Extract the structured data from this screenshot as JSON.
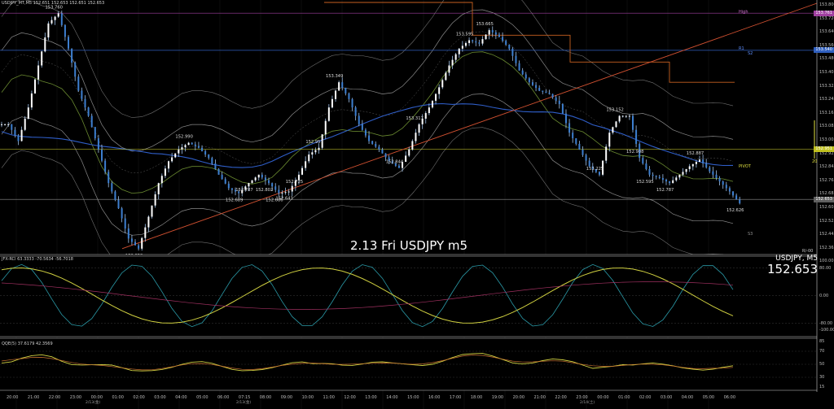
{
  "header": {
    "title": "USDJPY_MT,M5 152.651 152.653 152.651 152.653",
    "indicator1": "JFX-RCI 63.3333 -70.5634 -56.7018",
    "indicator2": "QQE(5) 37.6179 42.3569"
  },
  "panel": {
    "symbol": "USDJPY, M5",
    "price": "152.653",
    "watermark": "2.13 Fri USDJPY m5"
  },
  "level_labels": {
    "high": "High",
    "r1": "R1",
    "s2": "S2",
    "pivot": "PIVOT",
    "s3": "S3",
    "pivot_count": "20",
    "rci_tag": "R/-00"
  },
  "price_axis_ticks": [
    "153.800",
    "153.720",
    "153.640",
    "153.560",
    "153.480",
    "153.405",
    "153.325",
    "153.245",
    "153.165",
    "153.085",
    "153.005",
    "152.925",
    "152.845",
    "152.765",
    "152.685",
    "152.605",
    "152.525",
    "152.445",
    "152.365"
  ],
  "price_tags": [
    {
      "text": "153.761",
      "color": "#a040a0"
    },
    {
      "text": "153.540",
      "color": "#3060c0"
    },
    {
      "text": "152.951",
      "color": "#c0c020"
    },
    {
      "text": "152.653",
      "color": "#606060"
    }
  ],
  "rci_axis_ticks": [
    "100.00",
    "80.00",
    "0.00",
    "-80.00",
    "-100.00"
  ],
  "qqe_axis_ticks": [
    "85",
    "70",
    "50",
    "30",
    "15"
  ],
  "time_labels": [
    "20:00",
    "21:00",
    "22:00",
    "23:00",
    "00:00",
    "01:00",
    "02:00",
    "03:00",
    "04:00",
    "05:00",
    "06:00",
    "07:15",
    "08:00",
    "09:00",
    "10:00",
    "11:00",
    "12:00",
    "13:00",
    "14:00",
    "15:00",
    "16:00",
    "17:00",
    "18:00",
    "19:00",
    "20:00",
    "21:00",
    "22:00",
    "23:00",
    "00:00",
    "01:00",
    "02:00",
    "03:00",
    "04:00",
    "05:00",
    "06:00"
  ],
  "date_labels": [
    "2/13(金)",
    "2/13(金)",
    "2/14(土)"
  ],
  "price_annotations": [
    {
      "text": "153.760"
    },
    {
      "text": "153.665"
    },
    {
      "text": "153.595"
    },
    {
      "text": "153.349"
    },
    {
      "text": "153.317"
    },
    {
      "text": "153.225"
    },
    {
      "text": "153.152"
    },
    {
      "text": "152.990"
    },
    {
      "text": "152.957"
    },
    {
      "text": "152.908"
    },
    {
      "text": "152.887"
    },
    {
      "text": "152.844"
    },
    {
      "text": "152.787"
    },
    {
      "text": "152.787"
    },
    {
      "text": "152.802"
    },
    {
      "text": "152.725"
    },
    {
      "text": "152.689"
    },
    {
      "text": "152.686"
    },
    {
      "text": "152.641"
    },
    {
      "text": "152.626"
    },
    {
      "text": "152.595"
    },
    {
      "text": "152.358"
    }
  ],
  "chart_data": {
    "type": "line",
    "title": "2.13 Fri USDJPY m5",
    "symbol": "USDJPY",
    "timeframe": "M5",
    "ylim": [
      152.33,
      153.82
    ],
    "series": [
      {
        "name": "USDJPY close",
        "values": [
          153.1,
          153.0,
          153.2,
          153.45,
          153.7,
          153.76,
          153.55,
          153.3,
          153.15,
          152.95,
          152.75,
          152.6,
          152.42,
          152.36,
          152.55,
          152.75,
          152.88,
          152.95,
          152.99,
          152.96,
          152.9,
          152.8,
          152.72,
          152.69,
          152.75,
          152.8,
          152.75,
          152.69,
          152.7,
          152.8,
          152.92,
          152.96,
          153.2,
          153.35,
          153.25,
          153.1,
          153.0,
          152.95,
          152.88,
          152.84,
          152.95,
          153.1,
          153.2,
          153.32,
          153.45,
          153.55,
          153.6,
          153.58,
          153.66,
          153.62,
          153.55,
          153.42,
          153.35,
          153.3,
          153.28,
          153.22,
          153.05,
          152.95,
          152.85,
          152.8,
          153.05,
          153.15,
          153.15,
          152.9,
          152.8,
          152.78,
          152.75,
          152.8,
          152.85,
          152.89,
          152.82,
          152.76,
          152.7,
          152.63
        ]
      }
    ],
    "levels": {
      "high": 153.761,
      "r1": 153.54,
      "pivot": 152.951,
      "last": 152.653
    }
  }
}
